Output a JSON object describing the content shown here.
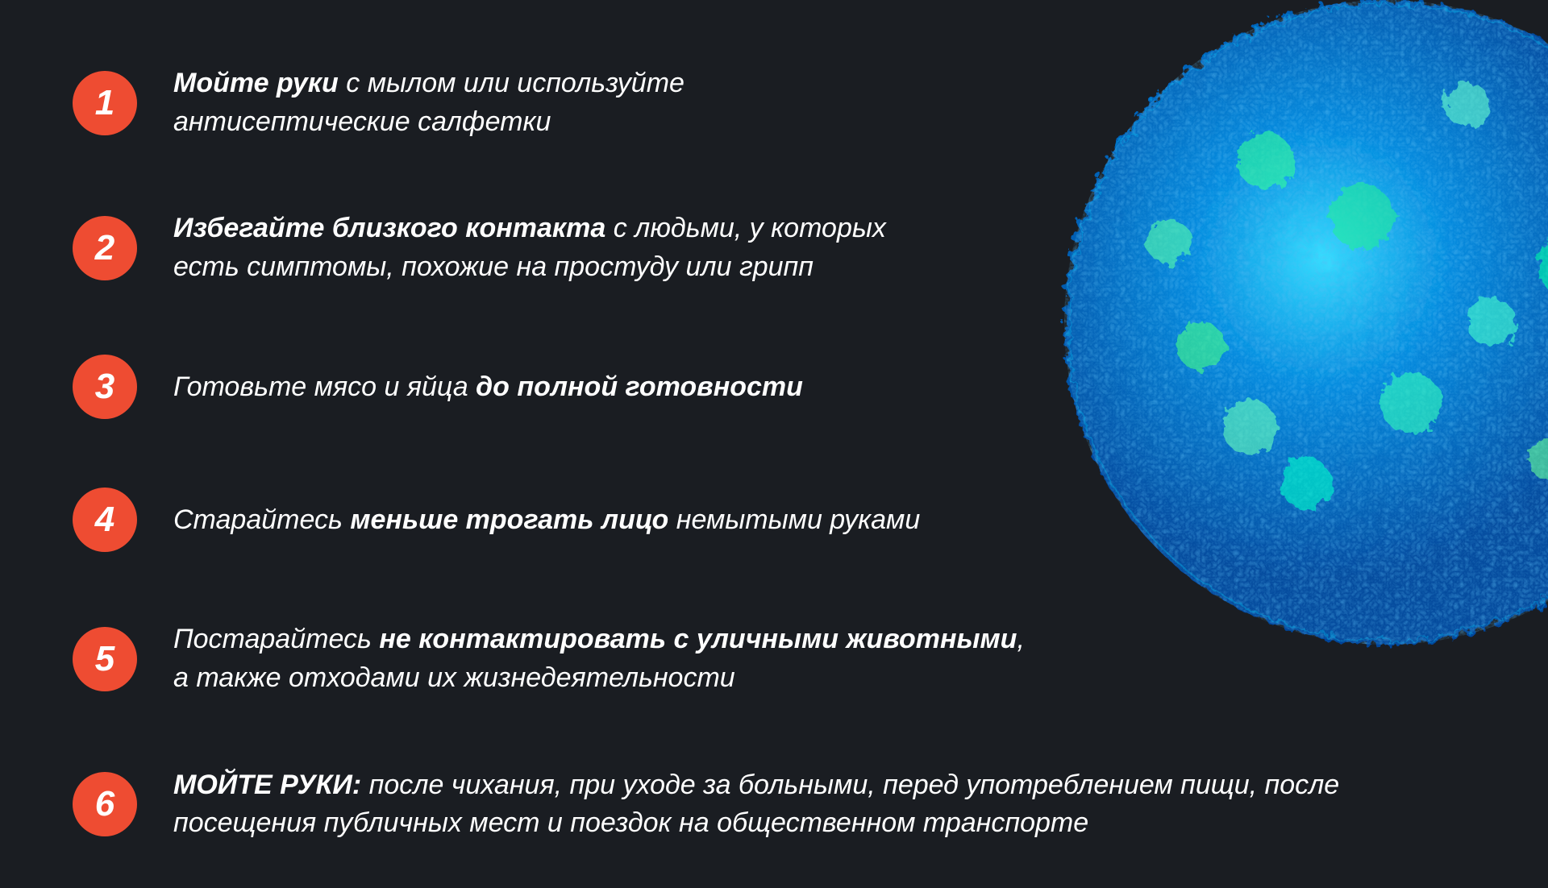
{
  "background_color": "#1a1d22",
  "badge_color": "#ee4c32",
  "text_color": "#ffffff",
  "virus_colors": {
    "primary": "#0066cc",
    "secondary": "#00aaff",
    "accent1": "#33ff99",
    "accent2": "#66ffcc",
    "accent3": "#0088dd",
    "dark": "#003388"
  },
  "font_size_text": 34,
  "font_size_badge": 44,
  "badge_size": 80,
  "items": [
    {
      "number": "1",
      "text_parts": [
        {
          "text": "Мойте руки",
          "bold": true
        },
        {
          "text": " с мылом или используйте антисептические салфетки",
          "bold": false
        }
      ]
    },
    {
      "number": "2",
      "text_parts": [
        {
          "text": "Избегайте близкого контакта",
          "bold": true
        },
        {
          "text": " с людьми, у которых есть симптомы, похожие на простуду или грипп",
          "bold": false
        }
      ]
    },
    {
      "number": "3",
      "text_parts": [
        {
          "text": "Готовьте мясо и яйца ",
          "bold": false
        },
        {
          "text": "до полной готовности",
          "bold": true
        }
      ]
    },
    {
      "number": "4",
      "text_parts": [
        {
          "text": "Старайтесь ",
          "bold": false
        },
        {
          "text": "меньше трогать лицо",
          "bold": true
        },
        {
          "text": " немытыми руками",
          "bold": false
        }
      ]
    },
    {
      "number": "5",
      "text_parts": [
        {
          "text": "Постарайтесь ",
          "bold": false
        },
        {
          "text": "не контактировать с уличными животными",
          "bold": true
        },
        {
          "text": ", а также отходами их жизнедеятельности",
          "bold": false
        }
      ]
    },
    {
      "number": "6",
      "text_parts": [
        {
          "text": "МОЙТЕ РУКИ:",
          "bold": true
        },
        {
          "text": " после чихания, при уходе за больными, перед употреблением пищи, после посещения публичных мест и поездок на общественном транспорте",
          "bold": false
        }
      ]
    }
  ],
  "list_max_widths": [
    900,
    970,
    970,
    1000,
    1080,
    1740
  ]
}
